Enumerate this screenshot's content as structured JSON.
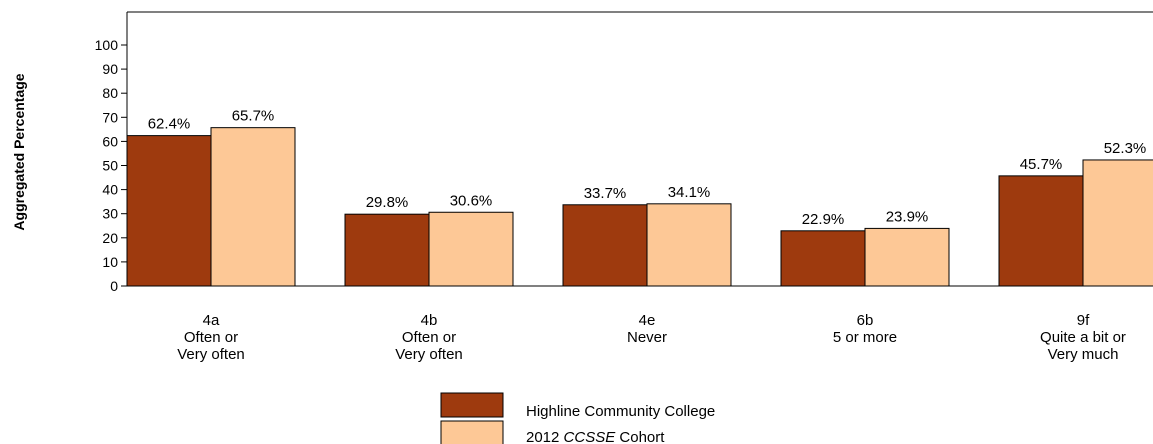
{
  "chart_data": {
    "type": "bar",
    "ylabel": "Aggregated Percentage",
    "ylim": [
      0,
      100
    ],
    "yticks": [
      "0",
      "10",
      "20",
      "30",
      "40",
      "50",
      "60",
      "70",
      "80",
      "90",
      "100"
    ],
    "categories": [
      [
        "4a",
        "Often or",
        "Very often"
      ],
      [
        "4b",
        "Often or",
        "Very often"
      ],
      [
        "4e",
        "Never"
      ],
      [
        "6b",
        "5 or more"
      ],
      [
        "9f",
        "Quite a bit or",
        "Very much"
      ]
    ],
    "series": [
      {
        "name": "Highline Community College",
        "color": "#9e3a0e",
        "values": [
          62.4,
          29.8,
          33.7,
          22.9,
          45.7
        ],
        "labels": [
          "62.4%",
          "29.8%",
          "33.7%",
          "22.9%",
          "45.7%"
        ]
      },
      {
        "name_parts": [
          "2012 ",
          "CCSSE",
          " Cohort"
        ],
        "color": "#fdc896",
        "values": [
          65.7,
          30.6,
          34.1,
          23.9,
          52.3
        ],
        "labels": [
          "65.7%",
          "30.6%",
          "34.1%",
          "23.9%",
          "52.3%"
        ]
      }
    ],
    "grid": false,
    "legend_position": "bottom-center"
  }
}
